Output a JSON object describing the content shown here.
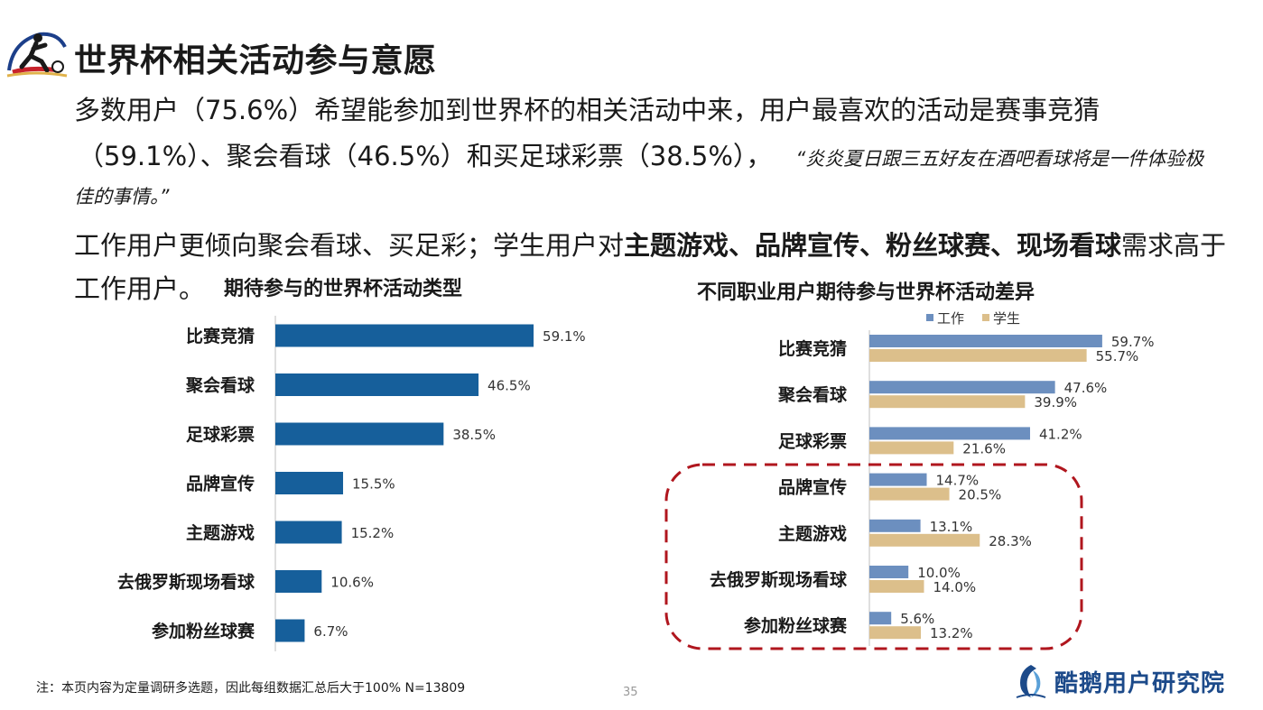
{
  "header": {
    "title": "世界杯相关活动参与意愿"
  },
  "body": {
    "p1": "多数用户（75.6%）希望能参加到世界杯的相关活动中来，用户最喜欢的活动是赛事竞猜",
    "p2": "（59.1%）、聚会看球（46.5%）和买足球彩票（38.5%），",
    "quote_a": "“炎炎夏日跟三五好友在酒吧看球将是一件体验极",
    "quote_b": "佳的事情。”",
    "p4_a": "工作用户更倾向聚会看球、买足彩；学生用户对",
    "p4_b": "主题游戏、品牌宣传、粉丝球赛、现场看球",
    "p4_c": "需求高于",
    "p5": "工作用户。"
  },
  "footer": {
    "note": "注：本页内容为定量调研多选题，因此每组数据汇总后大于100%    N=13809",
    "page": "35",
    "brand": "酷鹅用户研究院"
  },
  "colors": {
    "bar": "#165f9b",
    "work": "#6c8fbf",
    "student": "#dcbf8b",
    "highlight": "#b0161e"
  },
  "chart_data": [
    {
      "type": "bar",
      "orientation": "horizontal",
      "title": "期待参与的世界杯活动类型",
      "categories": [
        "比赛竞猜",
        "聚会看球",
        "足球彩票",
        "品牌宣传",
        "主题游戏",
        "去俄罗斯现场看球",
        "参加粉丝球赛"
      ],
      "values": [
        59.1,
        46.5,
        38.5,
        15.5,
        15.2,
        10.6,
        6.7
      ],
      "labels": [
        "59.1%",
        "46.5%",
        "38.5%",
        "15.5%",
        "15.2%",
        "10.6%",
        "6.7%"
      ],
      "xlim": [
        0,
        100
      ]
    },
    {
      "type": "bar",
      "orientation": "horizontal",
      "title": "不同职业用户期待参与世界杯活动差异",
      "categories": [
        "比赛竞猜",
        "聚会看球",
        "足球彩票",
        "品牌宣传",
        "主题游戏",
        "去俄罗斯现场看球",
        "参加粉丝球赛"
      ],
      "legend_position": "top",
      "series": [
        {
          "name": "工作",
          "values": [
            59.7,
            47.6,
            41.2,
            14.7,
            13.1,
            10.0,
            5.6
          ],
          "labels": [
            "59.7%",
            "47.6%",
            "41.2%",
            "14.7%",
            "13.1%",
            "10.0%",
            "5.6%"
          ]
        },
        {
          "name": "学生",
          "values": [
            55.7,
            39.9,
            21.6,
            20.5,
            28.3,
            14.0,
            13.2
          ],
          "labels": [
            "55.7%",
            "39.9%",
            "21.6%",
            "20.5%",
            "28.3%",
            "14.0%",
            "13.2%"
          ]
        }
      ],
      "highlighted_categories": [
        "品牌宣传",
        "主题游戏",
        "去俄罗斯现场看球",
        "参加粉丝球赛"
      ],
      "xlim": [
        0,
        100
      ]
    }
  ]
}
